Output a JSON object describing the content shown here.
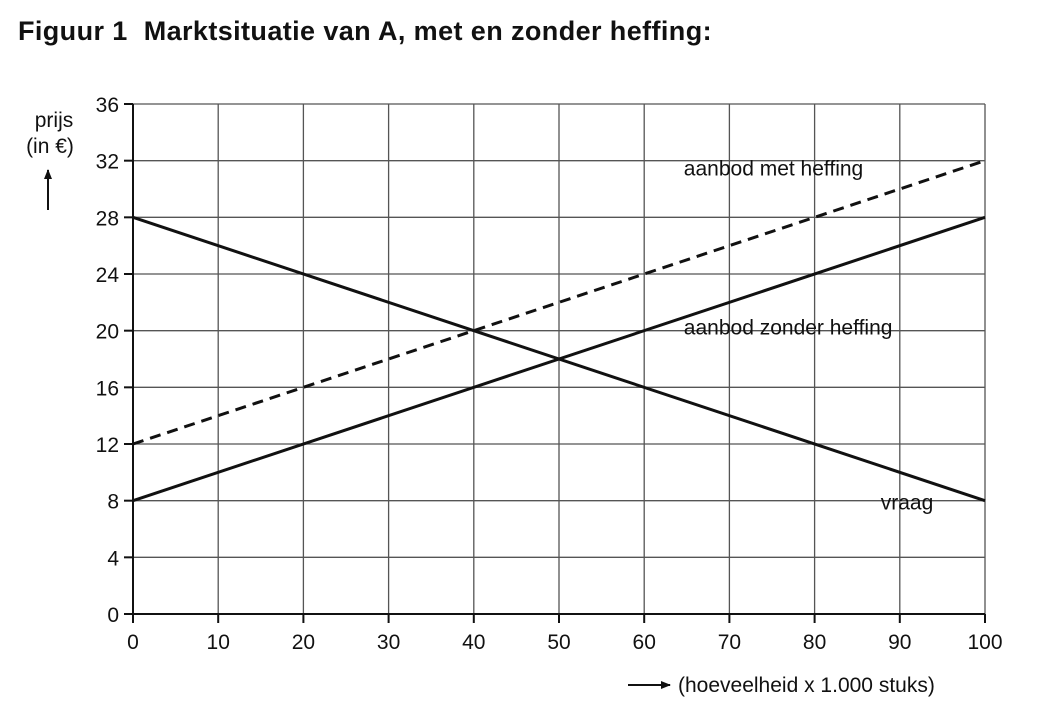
{
  "figure": {
    "number": "Figuur 1",
    "title": "Marktsituatie van A, met en zonder heffing:"
  },
  "chart_data": {
    "type": "line",
    "title": "Figuur 1  Marktsituatie van A, met en zonder heffing:",
    "xlabel": "(hoeveelheid x 1.000 stuks)",
    "ylabel_line1": "prijs",
    "ylabel_line2": "(in €)",
    "xlim": [
      0,
      100
    ],
    "ylim": [
      0,
      36
    ],
    "x_ticks": [
      0,
      10,
      20,
      30,
      40,
      50,
      60,
      70,
      80,
      90,
      100
    ],
    "y_ticks": [
      0,
      4,
      8,
      12,
      16,
      20,
      24,
      28,
      32,
      36
    ],
    "grid": true,
    "series": [
      {
        "name": "aanbod met heffing",
        "style": "dashed",
        "x": [
          0,
          100
        ],
        "y": [
          12,
          32
        ],
        "label_at_x": 65
      },
      {
        "name": "aanbod zonder heffing",
        "style": "solid",
        "x": [
          0,
          100
        ],
        "y": [
          8,
          28
        ],
        "label_at_x": 65
      },
      {
        "name": "vraag",
        "style": "solid",
        "x": [
          0,
          100
        ],
        "y": [
          28,
          8
        ],
        "label_at_x": 88
      }
    ],
    "colors": {
      "lines": "#111111",
      "grid": "#555555",
      "background": "#ffffff"
    }
  }
}
